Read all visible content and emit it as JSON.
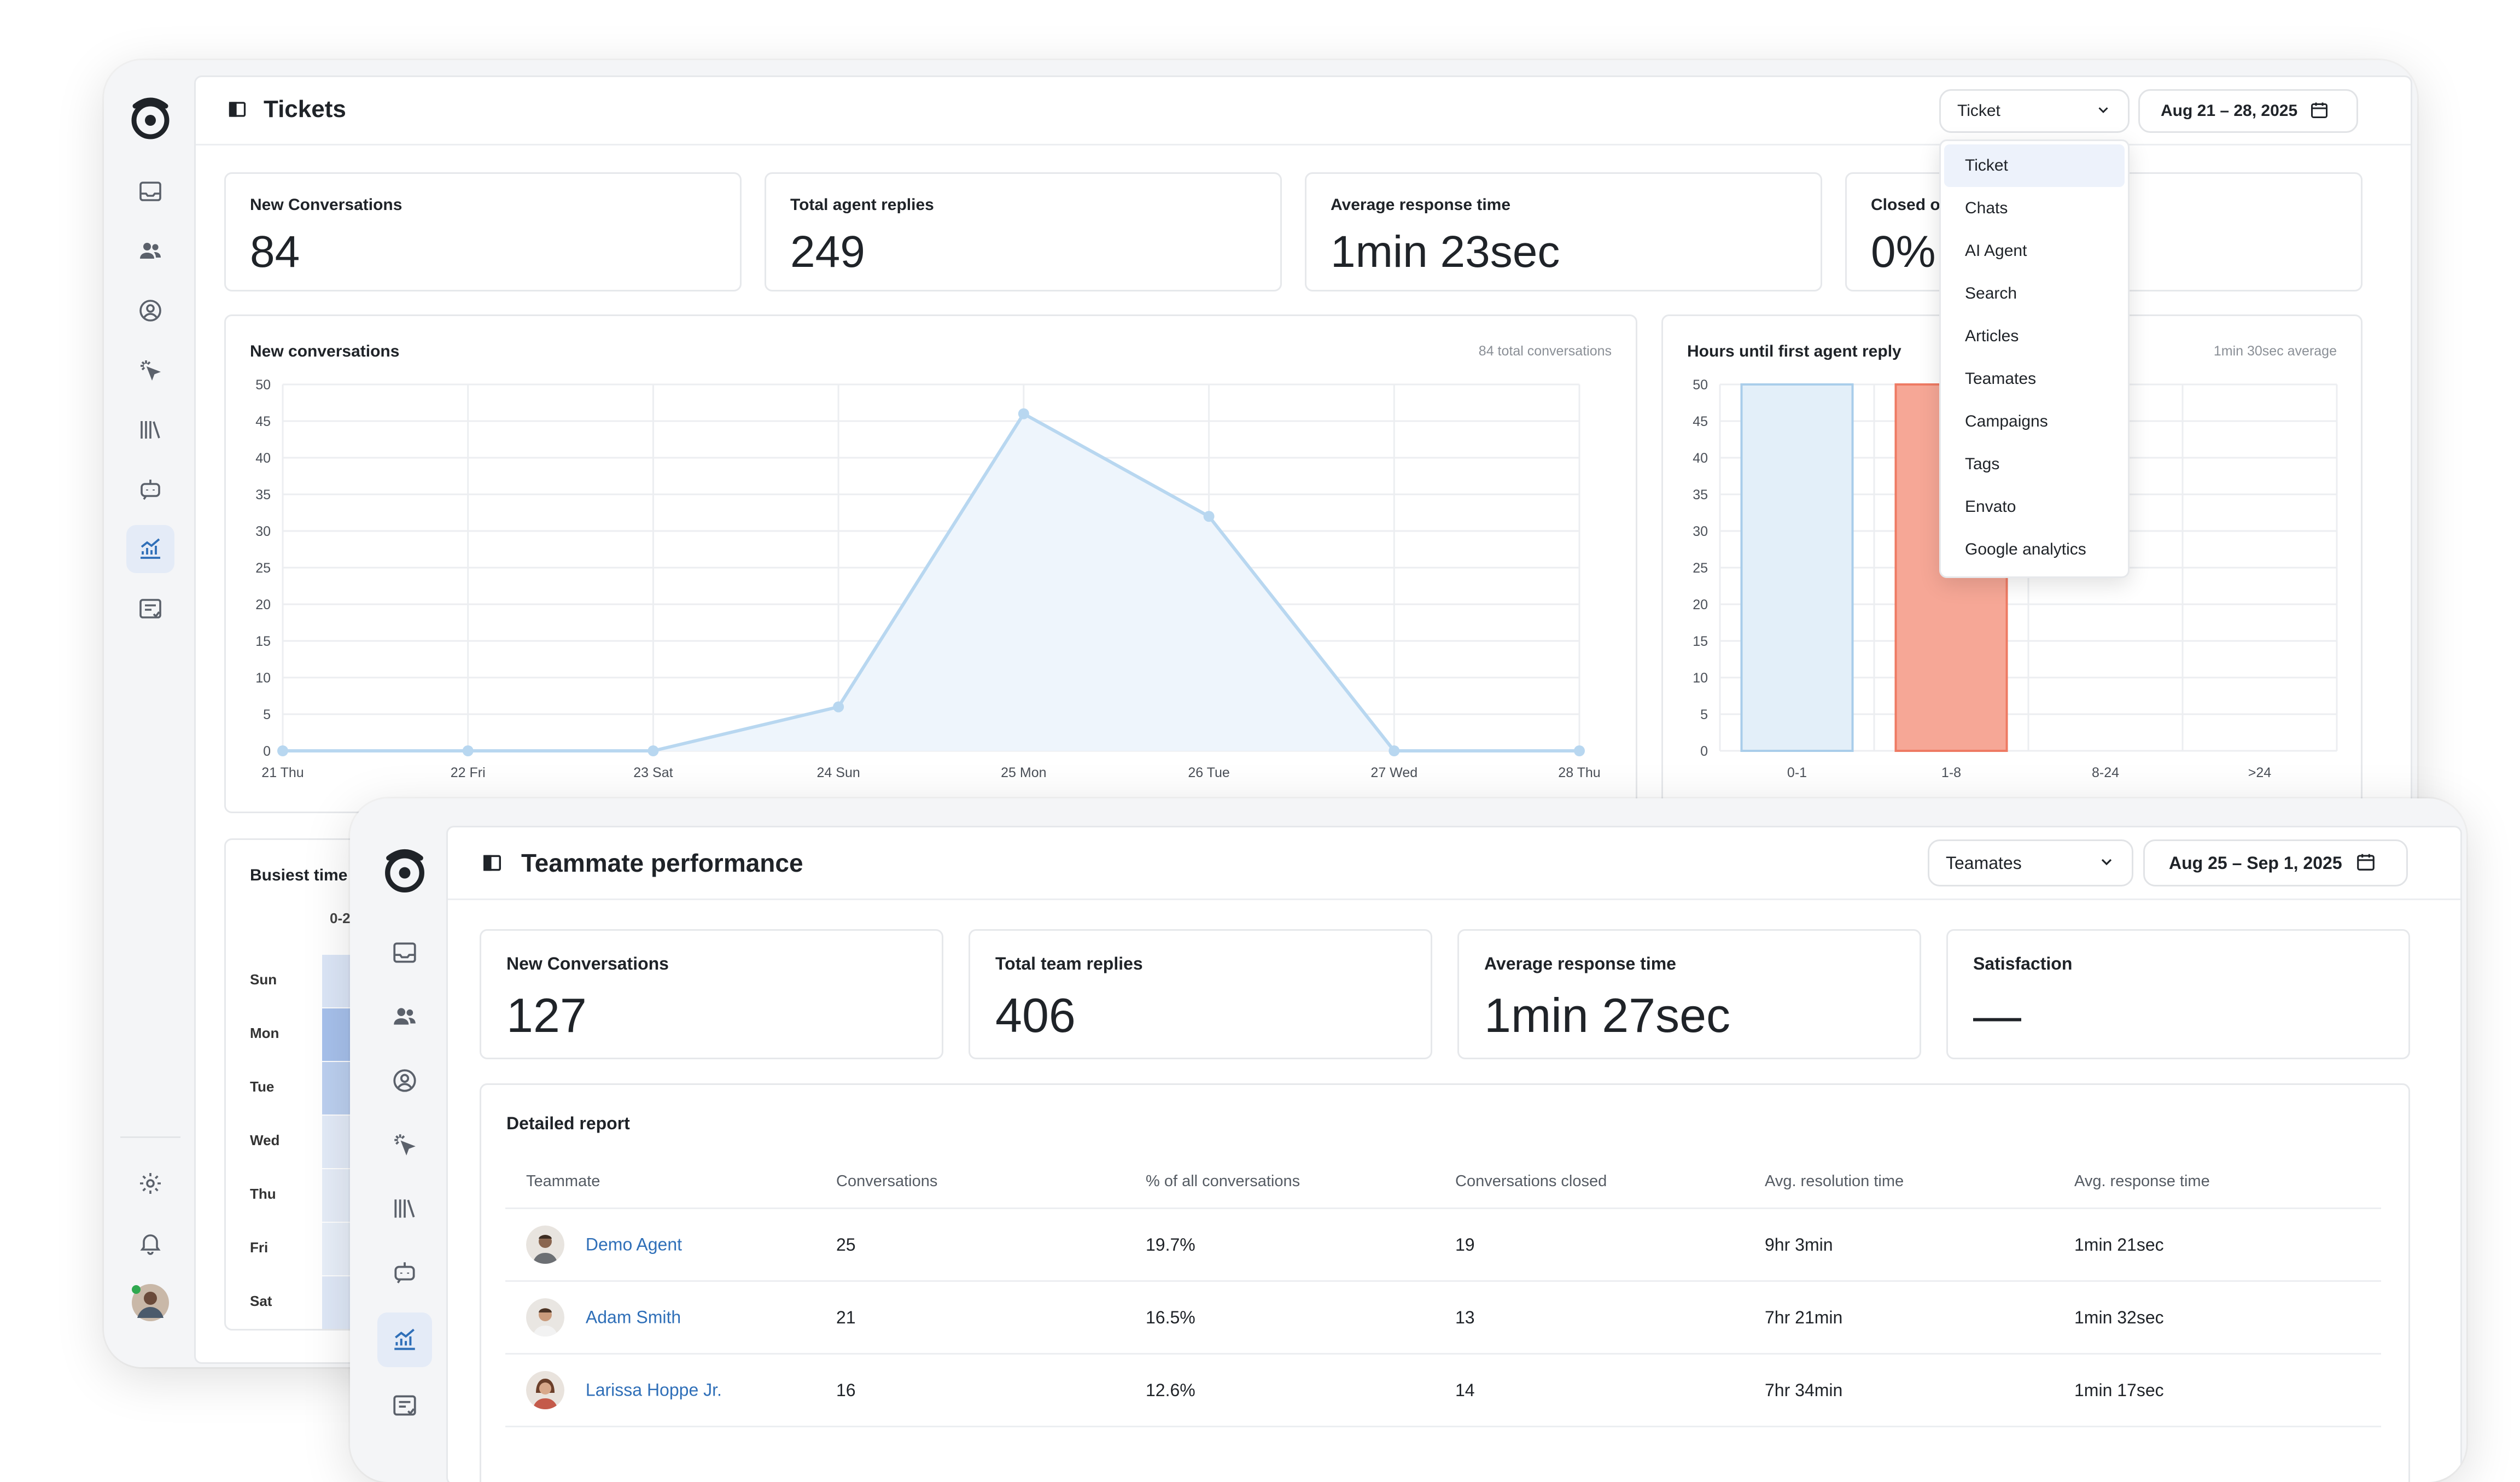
{
  "tickets": {
    "title": "Tickets",
    "report_select": "Ticket",
    "date_range": "Aug 21 – 28, 2025",
    "stats": [
      {
        "label": "New Conversations",
        "value": "84"
      },
      {
        "label": "Total agent replies",
        "value": "249"
      },
      {
        "label": "Average response time",
        "value": "1min 23sec"
      },
      {
        "label": "Closed o",
        "value": "0%"
      }
    ],
    "dropdown_options": [
      "Ticket",
      "Chats",
      "AI Agent",
      "Search",
      "Articles",
      "Teamates",
      "Campaigns",
      "Tags",
      "Envato",
      "Google analytics"
    ],
    "busiest": {
      "title": "Busiest time of",
      "col": "0-2",
      "days": [
        "Sun",
        "Mon",
        "Tue",
        "Wed",
        "Thu",
        "Fri",
        "Sat"
      ]
    }
  },
  "chart_data": [
    {
      "type": "area",
      "title": "New conversations",
      "subtitle": "84 total conversations",
      "categories": [
        "21 Thu",
        "22 Fri",
        "23 Sat",
        "24 Sun",
        "25 Mon",
        "26 Tue",
        "27 Wed",
        "28 Thu"
      ],
      "values": [
        0,
        0,
        0,
        6,
        46,
        32,
        0,
        0
      ],
      "ylim": [
        0,
        50
      ],
      "yticks": [
        0,
        5,
        10,
        15,
        20,
        25,
        30,
        35,
        40,
        45,
        50
      ],
      "grid": true,
      "color": "#b8d7f0"
    },
    {
      "type": "bar",
      "title": "Hours until first agent reply",
      "subtitle": "1min 30sec average",
      "categories": [
        "0-1",
        "1-8",
        "8-24",
        ">24"
      ],
      "values": [
        50,
        50,
        0,
        0
      ],
      "ylim": [
        0,
        50
      ],
      "yticks": [
        0,
        5,
        10,
        15,
        20,
        25,
        30,
        35,
        40,
        45,
        50
      ],
      "grid": true,
      "colors": [
        "#a9cdea",
        "#ee7a63"
      ]
    }
  ],
  "teammate": {
    "title": "Teammate performance",
    "report_select": "Teamates",
    "date_range": "Aug 25 – Sep 1, 2025",
    "stats": [
      {
        "label": "New Conversations",
        "value": "127"
      },
      {
        "label": "Total team replies",
        "value": "406"
      },
      {
        "label": "Average response time",
        "value": "1min 27sec"
      },
      {
        "label": "Satisfaction",
        "value": "—"
      }
    ],
    "report_title": "Detailed report",
    "columns": [
      "Teammate",
      "Conversations",
      "% of all conversations",
      "Conversations closed",
      "Avg. resolution time",
      "Avg. response time"
    ],
    "rows": [
      {
        "name": "Demo Agent",
        "conversations": "25",
        "percent": "19.7%",
        "closed": "19",
        "resolution": "9hr 3min",
        "response": "1min 21sec"
      },
      {
        "name": "Adam Smith",
        "conversations": "21",
        "percent": "16.5%",
        "closed": "13",
        "resolution": "7hr 21min",
        "response": "1min 32sec"
      },
      {
        "name": "Larissa Hoppe Jr.",
        "conversations": "16",
        "percent": "12.6%",
        "closed": "14",
        "resolution": "7hr 34min",
        "response": "1min 17sec"
      }
    ]
  },
  "icons": {
    "rail": [
      "logo-icon",
      "inbox-icon",
      "contacts-icon",
      "user-circle-icon",
      "automation-icon",
      "library-icon",
      "bot-icon",
      "reports-icon",
      "forms-icon",
      "settings-icon",
      "bell-icon",
      "user-avatar"
    ]
  },
  "colors": {
    "accent": "#2f6fb8",
    "active_bg": "#e4ebf7",
    "area_fill": "#eef5fc",
    "area_line": "#b8d7f0",
    "bar_red": "#ee7a63",
    "bar_blue": "#a9cdea"
  }
}
